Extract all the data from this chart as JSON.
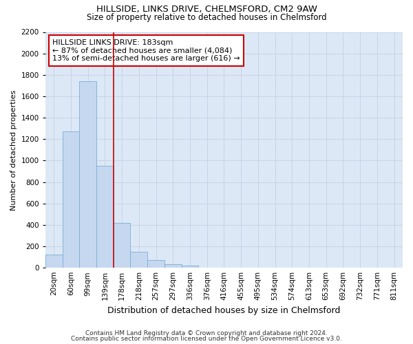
{
  "title": "HILLSIDE, LINKS DRIVE, CHELMSFORD, CM2 9AW",
  "subtitle": "Size of property relative to detached houses in Chelmsford",
  "xlabel": "Distribution of detached houses by size in Chelmsford",
  "ylabel": "Number of detached properties",
  "categories": [
    "20sqm",
    "60sqm",
    "99sqm",
    "139sqm",
    "178sqm",
    "218sqm",
    "257sqm",
    "297sqm",
    "336sqm",
    "376sqm",
    "416sqm",
    "455sqm",
    "495sqm",
    "534sqm",
    "574sqm",
    "613sqm",
    "653sqm",
    "692sqm",
    "732sqm",
    "771sqm",
    "811sqm"
  ],
  "values": [
    120,
    1270,
    1740,
    950,
    420,
    150,
    70,
    35,
    20,
    0,
    0,
    0,
    0,
    0,
    0,
    0,
    0,
    0,
    0,
    0,
    0
  ],
  "bar_color": "#c5d8f0",
  "bar_edge_color": "#7aadd4",
  "annotation_text_line1": "HILLSIDE LINKS DRIVE: 183sqm",
  "annotation_text_line2": "← 87% of detached houses are smaller (4,084)",
  "annotation_text_line3": "13% of semi-detached houses are larger (616) →",
  "annotation_box_color": "#ffffff",
  "annotation_box_edge": "#cc0000",
  "vline_color": "#cc0000",
  "vline_x": 3.5,
  "ylim": [
    0,
    2200
  ],
  "yticks": [
    0,
    200,
    400,
    600,
    800,
    1000,
    1200,
    1400,
    1600,
    1800,
    2000,
    2200
  ],
  "grid_color": "#c8d4e8",
  "bg_color": "#dce8f5",
  "title_fontsize": 9.5,
  "subtitle_fontsize": 8.5,
  "ylabel_fontsize": 8,
  "xlabel_fontsize": 9,
  "annotation_fontsize": 8,
  "tick_fontsize": 7.5,
  "footer1": "Contains HM Land Registry data © Crown copyright and database right 2024.",
  "footer2": "Contains public sector information licensed under the Open Government Licence v3.0."
}
